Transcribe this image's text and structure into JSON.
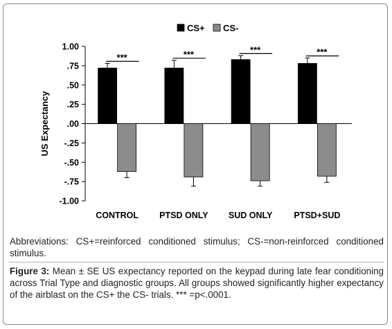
{
  "chart_data": {
    "type": "bar",
    "categories": [
      "CONTROL",
      "PTSD ONLY",
      "SUD ONLY",
      "PTSD+SUD"
    ],
    "series": [
      {
        "name": "CS+",
        "color": "#000000",
        "values": [
          0.72,
          0.72,
          0.83,
          0.78
        ],
        "se": [
          0.06,
          0.1,
          0.05,
          0.07
        ]
      },
      {
        "name": "CS-",
        "color": "#8c8c8c",
        "values": [
          -0.62,
          -0.69,
          -0.74,
          -0.68
        ],
        "se": [
          0.08,
          0.12,
          0.07,
          0.08
        ]
      }
    ],
    "ylabel": "US Expectancy",
    "ylim": [
      -1.0,
      1.0
    ],
    "yticks": [
      "1.00",
      ".75",
      ".50",
      ".25",
      ".00",
      "-.25",
      "-.50",
      "-.75",
      "-1.00"
    ],
    "yticks_values": [
      1.0,
      0.75,
      0.5,
      0.25,
      0.0,
      -0.25,
      -0.5,
      -0.75,
      -1.0
    ],
    "significance": [
      "***",
      "***",
      "***",
      "***"
    ],
    "legend_position": "top-center",
    "grid": false
  },
  "abbreviations": "Abbreviations: CS+=reinforced conditioned stimulus; CS-=non-reinforced conditioned stimulus.",
  "caption": {
    "label": "Figure 3:",
    "text": " Mean ± SE US expectancy reported on the keypad during late fear conditioning across Trial Type and diagnostic groups. All groups showed significantly higher expectancy of the airblast on the CS+ the CS- trials. *** =p<.0001."
  }
}
